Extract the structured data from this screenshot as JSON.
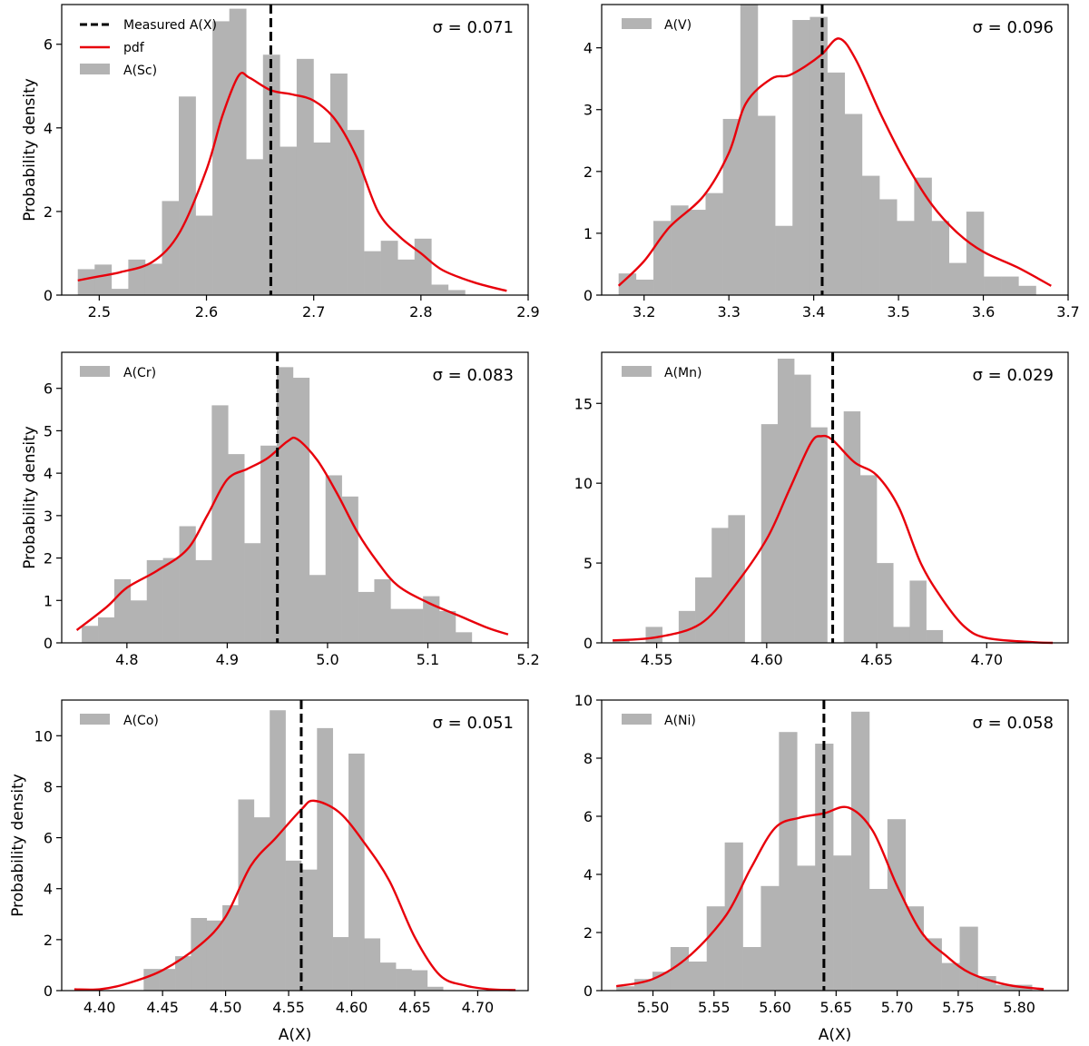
{
  "figure": {
    "xlabel": "A(X)",
    "ylabel": "Probability density",
    "colors": {
      "hist": "#b3b3b3",
      "pdf": "#e8000b",
      "measured": "#000000",
      "axes": "#000000"
    },
    "legend_full": {
      "measured_label": "Measured A(X)",
      "pdf_label": "pdf"
    }
  },
  "chart_data": [
    {
      "type": "bar",
      "name": "A(Sc)",
      "legend": "A(Sc)",
      "sigma_text": "σ = 0.071",
      "measured": 2.66,
      "xlim": [
        2.465,
        2.9
      ],
      "ylim": [
        0,
        6.95
      ],
      "xticks": [
        2.5,
        2.6,
        2.7,
        2.8,
        2.9
      ],
      "xtick_labels": [
        "2.5",
        "2.6",
        "2.7",
        "2.8",
        "2.9"
      ],
      "yticks": [
        0,
        2,
        4,
        6
      ],
      "ytick_labels": [
        "0",
        "2",
        "4",
        "6"
      ],
      "bin_start": 2.48,
      "bin_width": 0.0157,
      "values": [
        0.62,
        0.73,
        0.15,
        0.85,
        0.75,
        2.25,
        4.75,
        1.9,
        6.55,
        6.85,
        3.25,
        5.75,
        3.55,
        5.65,
        3.65,
        5.3,
        3.95,
        1.05,
        1.3,
        0.85,
        1.35,
        0.25,
        0.12
      ],
      "pdf": [
        [
          2.48,
          0.35
        ],
        [
          2.5,
          0.45
        ],
        [
          2.52,
          0.55
        ],
        [
          2.55,
          0.8
        ],
        [
          2.575,
          1.5
        ],
        [
          2.6,
          3.0
        ],
        [
          2.615,
          4.3
        ],
        [
          2.63,
          5.25
        ],
        [
          2.64,
          5.2
        ],
        [
          2.66,
          4.9
        ],
        [
          2.68,
          4.8
        ],
        [
          2.7,
          4.65
        ],
        [
          2.72,
          4.2
        ],
        [
          2.74,
          3.3
        ],
        [
          2.76,
          2.0
        ],
        [
          2.78,
          1.4
        ],
        [
          2.8,
          1.0
        ],
        [
          2.82,
          0.6
        ],
        [
          2.85,
          0.3
        ],
        [
          2.88,
          0.1
        ]
      ]
    },
    {
      "type": "bar",
      "name": "A(V)",
      "legend": "A(V)",
      "sigma_text": "σ = 0.096",
      "measured": 3.41,
      "xlim": [
        3.15,
        3.7
      ],
      "ylim": [
        0,
        4.7
      ],
      "xticks": [
        3.2,
        3.3,
        3.4,
        3.5,
        3.6,
        3.7
      ],
      "xtick_labels": [
        "3.2",
        "3.3",
        "3.4",
        "3.5",
        "3.6",
        "3.7"
      ],
      "yticks": [
        0,
        1,
        2,
        3,
        4
      ],
      "ytick_labels": [
        "0",
        "1",
        "2",
        "3",
        "4"
      ],
      "bin_start": 3.17,
      "bin_width": 0.0205,
      "values": [
        0.35,
        0.25,
        1.2,
        1.45,
        1.38,
        1.65,
        2.85,
        4.7,
        2.9,
        1.12,
        4.45,
        4.5,
        3.6,
        2.93,
        1.93,
        1.55,
        1.2,
        1.9,
        1.2,
        0.52,
        1.35,
        0.3,
        0.3,
        0.15
      ],
      "pdf": [
        [
          3.17,
          0.15
        ],
        [
          3.2,
          0.55
        ],
        [
          3.23,
          1.1
        ],
        [
          3.27,
          1.6
        ],
        [
          3.3,
          2.3
        ],
        [
          3.32,
          3.1
        ],
        [
          3.35,
          3.5
        ],
        [
          3.37,
          3.55
        ],
        [
          3.39,
          3.7
        ],
        [
          3.41,
          3.9
        ],
        [
          3.43,
          4.15
        ],
        [
          3.45,
          3.8
        ],
        [
          3.48,
          2.9
        ],
        [
          3.51,
          2.1
        ],
        [
          3.54,
          1.45
        ],
        [
          3.57,
          1.0
        ],
        [
          3.6,
          0.7
        ],
        [
          3.64,
          0.45
        ],
        [
          3.68,
          0.15
        ]
      ]
    },
    {
      "type": "bar",
      "name": "A(Cr)",
      "legend": "A(Cr)",
      "sigma_text": "σ = 0.083",
      "measured": 4.95,
      "xlim": [
        4.735,
        5.2
      ],
      "ylim": [
        0,
        6.85
      ],
      "xticks": [
        4.8,
        4.9,
        5.0,
        5.1,
        5.2
      ],
      "xtick_labels": [
        "4.8",
        "4.9",
        "5.0",
        "5.1",
        "5.2"
      ],
      "yticks": [
        0,
        1,
        2,
        3,
        4,
        5,
        6
      ],
      "ytick_labels": [
        "0",
        "1",
        "2",
        "3",
        "4",
        "5",
        "6"
      ],
      "bin_start": 4.755,
      "bin_width": 0.0162,
      "values": [
        0.4,
        0.6,
        1.5,
        1.0,
        1.95,
        2.0,
        2.75,
        1.95,
        5.6,
        4.45,
        2.35,
        4.65,
        6.5,
        6.25,
        1.6,
        3.95,
        3.45,
        1.2,
        1.5,
        0.8,
        0.8,
        1.1,
        0.75,
        0.25
      ],
      "pdf": [
        [
          4.75,
          0.3
        ],
        [
          4.78,
          0.85
        ],
        [
          4.8,
          1.3
        ],
        [
          4.83,
          1.7
        ],
        [
          4.86,
          2.2
        ],
        [
          4.88,
          3.0
        ],
        [
          4.9,
          3.85
        ],
        [
          4.92,
          4.1
        ],
        [
          4.94,
          4.35
        ],
        [
          4.96,
          4.75
        ],
        [
          4.97,
          4.8
        ],
        [
          4.99,
          4.3
        ],
        [
          5.01,
          3.5
        ],
        [
          5.03,
          2.6
        ],
        [
          5.05,
          1.9
        ],
        [
          5.07,
          1.35
        ],
        [
          5.1,
          0.95
        ],
        [
          5.13,
          0.65
        ],
        [
          5.16,
          0.35
        ],
        [
          5.18,
          0.2
        ]
      ]
    },
    {
      "type": "bar",
      "name": "A(Mn)",
      "legend": "A(Mn)",
      "sigma_text": "σ = 0.029",
      "measured": 4.63,
      "xlim": [
        4.525,
        4.737
      ],
      "ylim": [
        0,
        18.2
      ],
      "xticks": [
        4.55,
        4.6,
        4.65,
        4.7
      ],
      "xtick_labels": [
        "4.55",
        "4.60",
        "4.65",
        "4.70"
      ],
      "yticks": [
        0,
        5,
        10,
        15
      ],
      "ytick_labels": [
        "0",
        "5",
        "10",
        "15"
      ],
      "bin_start": 4.53,
      "bin_width": 0.0075,
      "values": [
        0.2,
        0.0,
        1.0,
        0.0,
        2.0,
        4.1,
        7.2,
        8.0,
        0.0,
        13.7,
        17.8,
        16.8,
        13.5,
        0.0,
        14.5,
        10.5,
        5.0,
        1.0,
        3.9,
        0.8
      ],
      "pdf": [
        [
          4.53,
          0.15
        ],
        [
          4.55,
          0.35
        ],
        [
          4.57,
          1.2
        ],
        [
          4.585,
          3.5
        ],
        [
          4.6,
          6.5
        ],
        [
          4.61,
          9.5
        ],
        [
          4.62,
          12.5
        ],
        [
          4.625,
          12.95
        ],
        [
          4.63,
          12.7
        ],
        [
          4.64,
          11.3
        ],
        [
          4.65,
          10.5
        ],
        [
          4.66,
          8.5
        ],
        [
          4.67,
          5.0
        ],
        [
          4.68,
          2.7
        ],
        [
          4.69,
          1.0
        ],
        [
          4.7,
          0.3
        ],
        [
          4.72,
          0.05
        ],
        [
          4.73,
          0.0
        ]
      ]
    },
    {
      "type": "bar",
      "name": "A(Co)",
      "legend": "A(Co)",
      "sigma_text": "σ = 0.051",
      "measured": 4.56,
      "xlim": [
        4.37,
        4.74
      ],
      "ylim": [
        0,
        11.4
      ],
      "xticks": [
        4.4,
        4.45,
        4.5,
        4.55,
        4.6,
        4.65,
        4.7
      ],
      "xtick_labels": [
        "4.40",
        "4.45",
        "4.50",
        "4.55",
        "4.60",
        "4.65",
        "4.70"
      ],
      "yticks": [
        0,
        2,
        4,
        6,
        8,
        10
      ],
      "ytick_labels": [
        "0",
        "2",
        "4",
        "6",
        "8",
        "10"
      ],
      "bin_start": 4.435,
      "bin_width": 0.0125,
      "values": [
        0.85,
        0.85,
        1.35,
        2.85,
        2.75,
        3.35,
        7.5,
        6.8,
        11.0,
        5.1,
        4.75,
        10.3,
        2.1,
        9.3,
        2.05,
        1.1,
        0.85,
        0.8,
        0.15
      ],
      "pdf": [
        [
          4.38,
          0.05
        ],
        [
          4.4,
          0.05
        ],
        [
          4.42,
          0.25
        ],
        [
          4.45,
          0.8
        ],
        [
          4.48,
          1.8
        ],
        [
          4.5,
          2.9
        ],
        [
          4.52,
          4.9
        ],
        [
          4.54,
          6.0
        ],
        [
          4.56,
          7.1
        ],
        [
          4.57,
          7.45
        ],
        [
          4.59,
          7.0
        ],
        [
          4.61,
          5.8
        ],
        [
          4.63,
          4.3
        ],
        [
          4.65,
          2.1
        ],
        [
          4.67,
          0.6
        ],
        [
          4.69,
          0.2
        ],
        [
          4.71,
          0.05
        ],
        [
          4.73,
          0.02
        ]
      ]
    },
    {
      "type": "bar",
      "name": "A(Ni)",
      "legend": "A(Ni)",
      "sigma_text": "σ = 0.058",
      "measured": 5.64,
      "xlim": [
        5.458,
        5.84
      ],
      "ylim": [
        0,
        10.0
      ],
      "xticks": [
        5.5,
        5.55,
        5.6,
        5.65,
        5.7,
        5.75,
        5.8
      ],
      "xtick_labels": [
        "5.50",
        "5.55",
        "5.60",
        "5.65",
        "5.70",
        "5.75",
        "5.80"
      ],
      "yticks": [
        0,
        2,
        4,
        6,
        8,
        10
      ],
      "ytick_labels": [
        "0",
        "2",
        "4",
        "6",
        "8",
        "10"
      ],
      "bin_start": 5.47,
      "bin_width": 0.0148,
      "values": [
        0.15,
        0.4,
        0.65,
        1.5,
        1.0,
        2.9,
        5.1,
        1.5,
        3.6,
        8.9,
        4.3,
        8.5,
        4.65,
        9.6,
        3.5,
        5.9,
        2.9,
        1.8,
        0.95,
        2.2,
        0.5,
        0.2,
        0.2
      ],
      "pdf": [
        [
          5.47,
          0.15
        ],
        [
          5.5,
          0.4
        ],
        [
          5.53,
          1.2
        ],
        [
          5.56,
          2.6
        ],
        [
          5.58,
          4.2
        ],
        [
          5.6,
          5.6
        ],
        [
          5.62,
          5.95
        ],
        [
          5.64,
          6.1
        ],
        [
          5.66,
          6.3
        ],
        [
          5.68,
          5.5
        ],
        [
          5.7,
          3.6
        ],
        [
          5.72,
          2.0
        ],
        [
          5.74,
          1.2
        ],
        [
          5.76,
          0.6
        ],
        [
          5.79,
          0.2
        ],
        [
          5.82,
          0.05
        ]
      ]
    }
  ]
}
